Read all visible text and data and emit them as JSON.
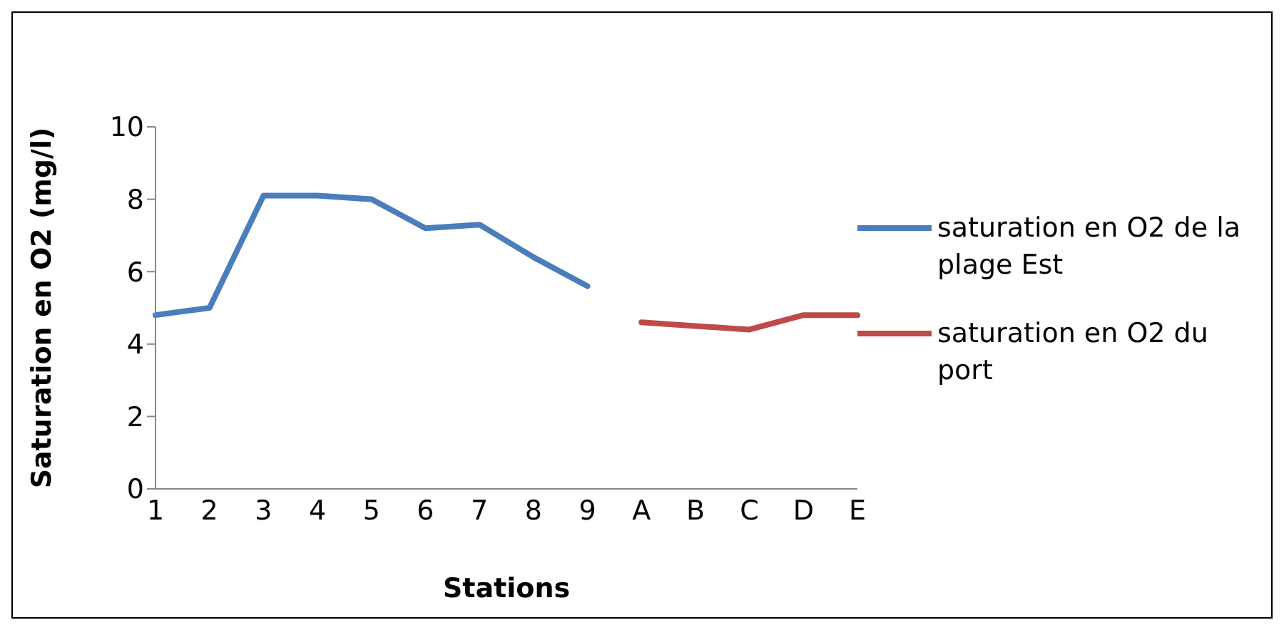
{
  "chart_data": {
    "type": "line",
    "xlabel": "Stations",
    "ylabel": "Saturation en O2 (mg/l)",
    "categories": [
      "1",
      "2",
      "3",
      "4",
      "5",
      "6",
      "7",
      "8",
      "9",
      "A",
      "B",
      "C",
      "D",
      "E"
    ],
    "ylim": [
      0,
      10
    ],
    "yticks": [
      0,
      2,
      4,
      6,
      8,
      10
    ],
    "grid": false,
    "legend": "right",
    "marker": "none",
    "line_style": "solid",
    "series": [
      {
        "name": "saturation en O2 de la plage Est",
        "color": "#4a7ebb",
        "values": [
          4.8,
          5.0,
          8.1,
          8.1,
          8.0,
          7.2,
          7.3,
          6.4,
          5.6,
          null,
          null,
          null,
          null,
          null
        ]
      },
      {
        "name": "saturation en O2 du port",
        "color": "#be4b48",
        "values": [
          null,
          null,
          null,
          null,
          null,
          null,
          null,
          null,
          null,
          4.6,
          4.5,
          4.4,
          4.8,
          4.8
        ]
      }
    ]
  }
}
